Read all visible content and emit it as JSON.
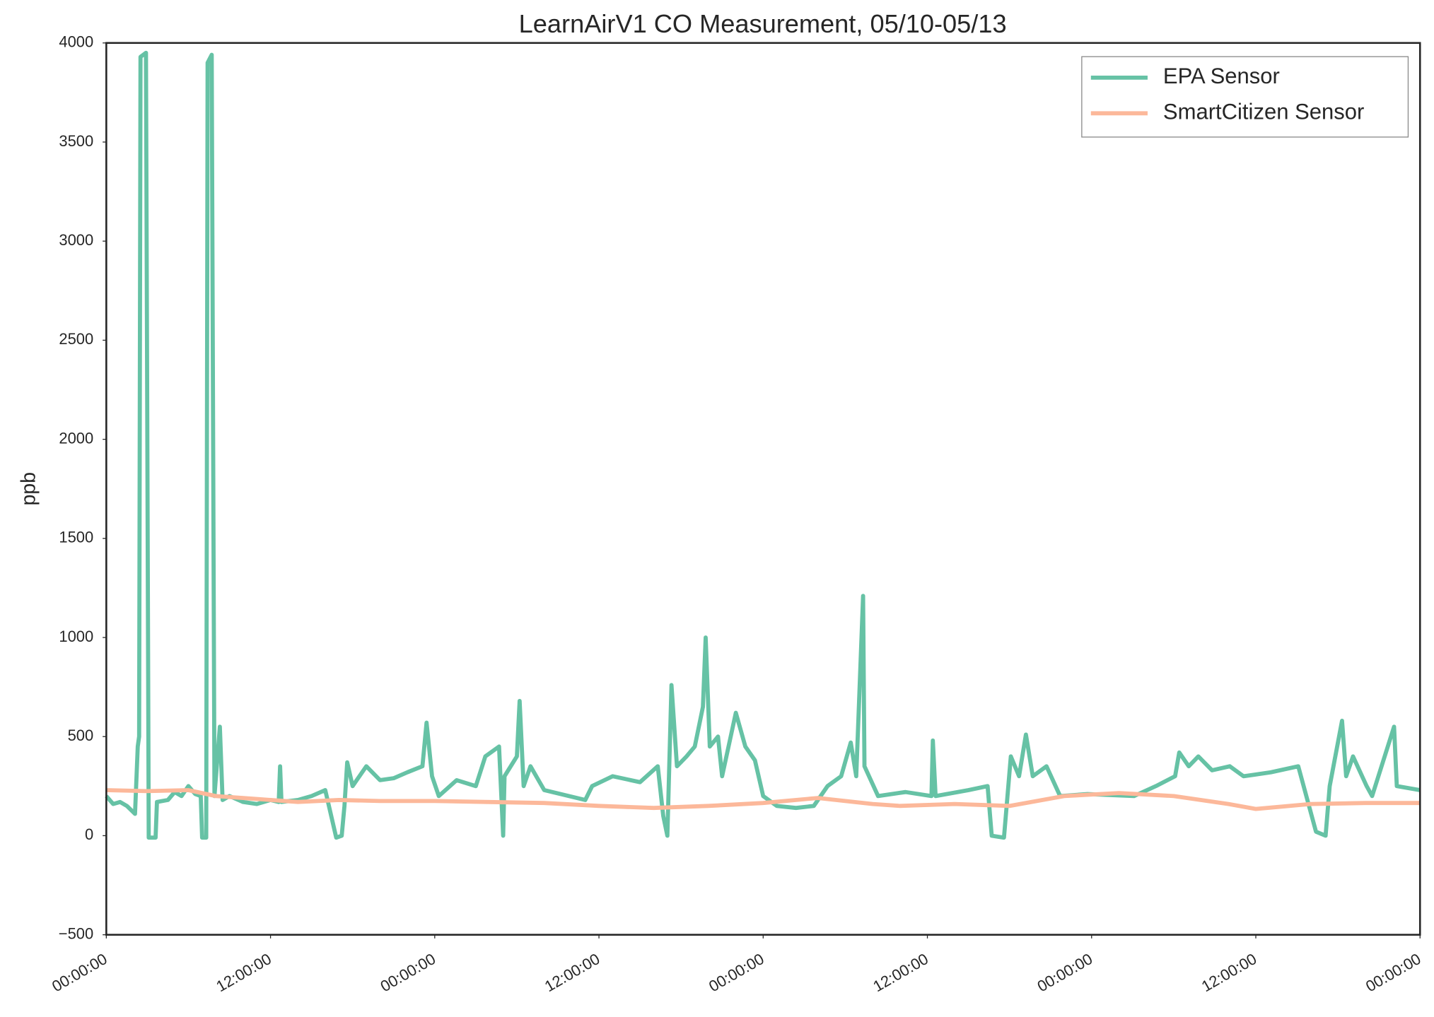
{
  "chart_data": {
    "type": "line",
    "title": "LearnAirV1 CO Measurement, 05/10-05/13",
    "y_label": "ppb",
    "xlim": [
      0,
      96
    ],
    "xticks": [
      {
        "value": 0,
        "label": "00:00:00"
      },
      {
        "value": 12,
        "label": "12:00:00"
      },
      {
        "value": 24,
        "label": "00:00:00"
      },
      {
        "value": 36,
        "label": "12:00:00"
      },
      {
        "value": 48,
        "label": "00:00:00"
      },
      {
        "value": 60,
        "label": "12:00:00"
      },
      {
        "value": 72,
        "label": "00:00:00"
      },
      {
        "value": 84,
        "label": "12:00:00"
      },
      {
        "value": 96,
        "label": "00:00:00"
      }
    ],
    "ylim": [
      -500,
      4000
    ],
    "yticks": [
      {
        "value": -500,
        "label": "−500"
      },
      0,
      500,
      1000,
      1500,
      2000,
      2500,
      3000,
      3500,
      4000
    ],
    "grid": false,
    "legend": "upper right",
    "series": [
      {
        "name": "EPA Sensor",
        "color": "#66c2a5",
        "x": [
          0,
          0.5,
          1,
          1.5,
          2.1,
          2.3,
          2.4,
          2.5,
          2.9,
          3.1,
          3.6,
          3.7,
          4.5,
          5,
          5.5,
          6,
          6.5,
          6.9,
          7.0,
          7.3,
          7.4,
          7.7,
          7.9,
          8.3,
          8.5,
          9,
          10,
          11,
          12,
          12.6,
          12.7,
          12.8,
          14,
          15,
          16,
          16.8,
          17.2,
          17.4,
          17.6,
          18,
          19,
          20,
          21,
          22,
          23.1,
          23.4,
          23.8,
          24.3,
          25.6,
          27,
          27.7,
          28.7,
          29,
          29.1,
          30,
          30.2,
          30.5,
          31,
          32,
          35,
          35.5,
          37,
          39,
          40.3,
          40.7,
          41,
          41.3,
          41.7,
          42.4,
          43,
          43.6,
          43.8,
          44.1,
          44.7,
          45,
          46,
          46.7,
          47.4,
          48,
          49,
          50.4,
          51.7,
          52.7,
          53.7,
          54.4,
          54.8,
          55.3,
          55.4,
          56.4,
          58.4,
          60.3,
          60.4,
          60.6,
          63,
          64.4,
          64.7,
          65.6,
          66.1,
          66.7,
          67.2,
          67.7,
          68.7,
          69.7,
          71.7,
          75.1,
          76.7,
          78.1,
          78.4,
          79.1,
          79.8,
          80.8,
          82.1,
          83.1,
          85.1,
          87.1,
          88.4,
          89.1,
          89.4,
          90.3,
          90.6,
          91.1,
          92.1,
          92.5,
          94.1,
          94.3,
          96
        ],
        "values": [
          200,
          160,
          170,
          150,
          110,
          450,
          500,
          3930,
          3950,
          -10,
          -10,
          170,
          180,
          220,
          200,
          250,
          210,
          200,
          -10,
          -10,
          3900,
          3940,
          200,
          550,
          180,
          200,
          170,
          160,
          180,
          170,
          350,
          170,
          180,
          200,
          230,
          -10,
          0,
          150,
          370,
          250,
          350,
          280,
          290,
          320,
          350,
          570,
          300,
          200,
          280,
          250,
          400,
          450,
          0,
          300,
          400,
          680,
          250,
          350,
          230,
          180,
          250,
          300,
          270,
          350,
          100,
          0,
          760,
          350,
          400,
          450,
          650,
          1000,
          450,
          500,
          300,
          620,
          450,
          380,
          200,
          150,
          140,
          150,
          250,
          300,
          470,
          300,
          1210,
          350,
          200,
          220,
          200,
          480,
          200,
          230,
          250,
          0,
          -10,
          400,
          300,
          510,
          300,
          350,
          200,
          210,
          200,
          250,
          300,
          420,
          350,
          400,
          330,
          350,
          300,
          320,
          350,
          20,
          0,
          250,
          580,
          300,
          400,
          250,
          200,
          550,
          250,
          230
        ]
      },
      {
        "name": "SmartCitizen Sensor",
        "color": "#fcb89a",
        "x": [
          0,
          3,
          6,
          8,
          11,
          14,
          17,
          20,
          24,
          28,
          32,
          36,
          40,
          44,
          48,
          52,
          56,
          58,
          62,
          66,
          70,
          74,
          78,
          82,
          84,
          88,
          92,
          96
        ],
        "values": [
          230,
          225,
          230,
          200,
          185,
          170,
          180,
          175,
          175,
          170,
          165,
          150,
          140,
          150,
          165,
          190,
          160,
          150,
          160,
          150,
          200,
          215,
          200,
          160,
          135,
          160,
          165,
          165
        ]
      }
    ]
  }
}
